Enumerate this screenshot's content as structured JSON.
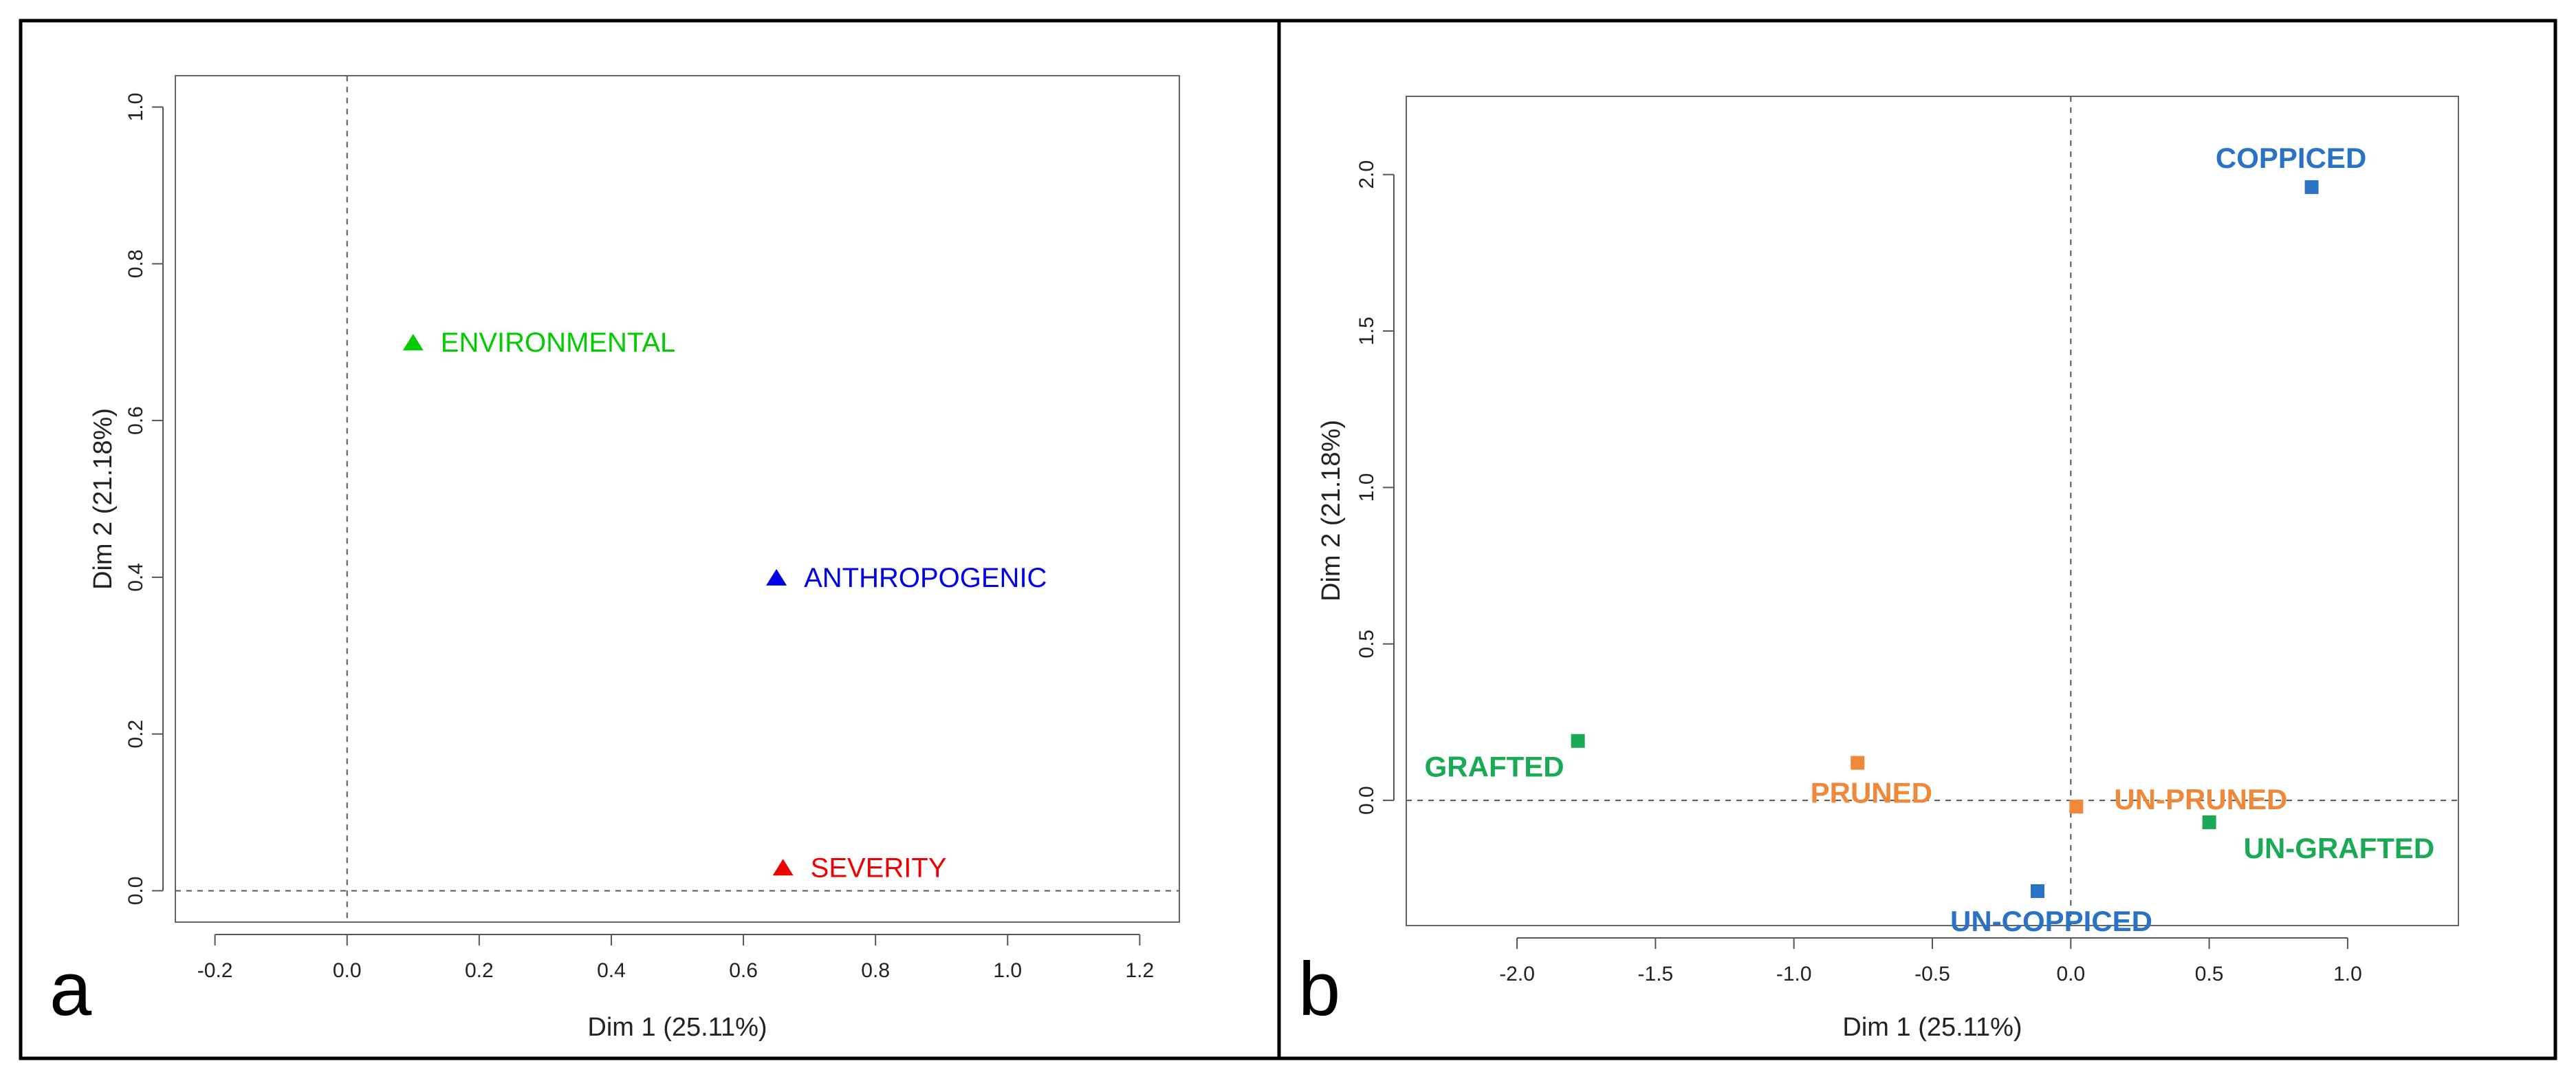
{
  "figure": {
    "panel_labels": [
      "a",
      "b"
    ]
  },
  "chart_data": [
    {
      "type": "scatter",
      "panel": "a",
      "title": "",
      "xlabel": "Dim 1 (25.11%)",
      "ylabel": "Dim 2 (21.18%)",
      "xlim": [
        -0.26,
        1.26
      ],
      "ylim": [
        -0.04,
        1.04
      ],
      "xticks": [
        -0.2,
        0.0,
        0.2,
        0.4,
        0.6,
        0.8,
        1.0,
        1.2
      ],
      "xtick_labels": [
        "-0.2",
        "0.0",
        "0.2",
        "0.4",
        "0.6",
        "0.8",
        "1.0",
        "1.2"
      ],
      "yticks": [
        0.0,
        0.2,
        0.4,
        0.6,
        0.8,
        1.0
      ],
      "ytick_labels": [
        "0.0",
        "0.2",
        "0.4",
        "0.6",
        "0.8",
        "1.0"
      ],
      "marker": "triangle",
      "reference_lines": {
        "x": 0,
        "y": 0
      },
      "points": [
        {
          "label": "ENVIRONMENTAL",
          "x": 0.1,
          "y": 0.7,
          "color": "#00cc00",
          "label_side": "right"
        },
        {
          "label": "ANTHROPOGENIC",
          "x": 0.65,
          "y": 0.4,
          "color": "#0000e6",
          "label_side": "right"
        },
        {
          "label": "SEVERITY",
          "x": 0.66,
          "y": 0.03,
          "color": "#ee0000",
          "label_side": "right"
        }
      ]
    },
    {
      "type": "scatter",
      "panel": "b",
      "title": "",
      "xlabel": "Dim 1 (25.11%)",
      "ylabel": "Dim 2 (21.18%)",
      "xlim": [
        -2.4,
        1.4
      ],
      "ylim": [
        -0.4,
        2.25
      ],
      "xticks": [
        -2.0,
        -1.5,
        -1.0,
        -0.5,
        0.0,
        0.5,
        1.0
      ],
      "xtick_labels": [
        "-2.0",
        "-1.5",
        "-1.0",
        "-0.5",
        "0.0",
        "0.5",
        "1.0"
      ],
      "yticks": [
        0.0,
        0.5,
        1.0,
        1.5,
        2.0
      ],
      "ytick_labels": [
        "0.0",
        "0.5",
        "1.0",
        "1.5",
        "2.0"
      ],
      "marker": "square",
      "reference_lines": {
        "x": 0,
        "y": 0
      },
      "points": [
        {
          "label": "COPPICED",
          "x": 0.87,
          "y": 1.96,
          "color": "#2a73c4",
          "label_side": "above"
        },
        {
          "label": "UN-COPPICED",
          "x": -0.12,
          "y": -0.29,
          "color": "#2a73c4",
          "label_side": "below"
        },
        {
          "label": "GRAFTED",
          "x": -1.78,
          "y": 0.19,
          "color": "#1aaa55",
          "label_side": "below-left"
        },
        {
          "label": "UN-GRAFTED",
          "x": 0.5,
          "y": -0.07,
          "color": "#1aaa55",
          "label_side": "below-right"
        },
        {
          "label": "PRUNED",
          "x": -0.77,
          "y": 0.12,
          "color": "#f0883a",
          "label_side": "below"
        },
        {
          "label": "UN-PRUNED",
          "x": 0.02,
          "y": -0.02,
          "color": "#f0883a",
          "label_side": "above-right"
        }
      ]
    }
  ]
}
